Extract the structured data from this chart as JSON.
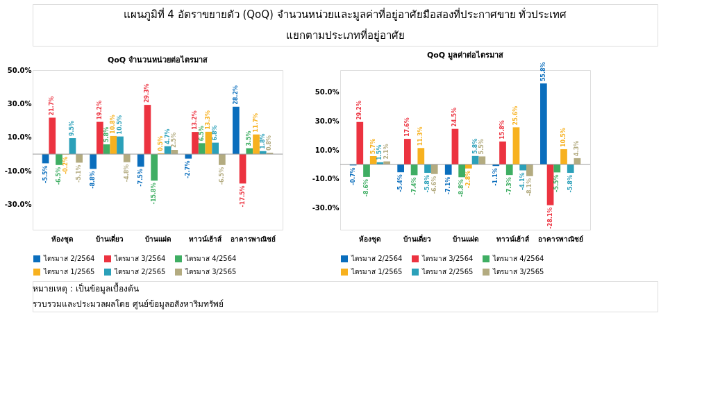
{
  "chart_data": [
    {
      "type": "bar",
      "title": "QoQ จำนวนหน่วยต่อไตรมาส",
      "annotations": [
        "แผนภูมิที่ 4 อัตราขยายตัว (QoQ) จำนวนหน่วยและมูลค่าที่อยู่อาศัยมือสองที่ประกาศขาย ทั่วประเทศ",
        "แยกตามประเภทที่อยู่อาศัย",
        "หมายเหตุ : เป็นข้อมูลเบื้องต้น",
        "รวบรวมและประมวลผลโดย ศูนย์ข้อมูลอสังหาริมทรัพย์"
      ],
      "categories": [
        "ห้องชุด",
        "บ้านเดี่ยว",
        "บ้านแฝด",
        "ทาวน์เฮ้าส์",
        "อาคารพาณิชย์"
      ],
      "ylim": [
        -45,
        50
      ],
      "yticks": [
        {
          "value": 50,
          "label": "50.0%"
        },
        {
          "value": 30,
          "label": "30.0%"
        },
        {
          "value": 10,
          "label": "10.0%"
        },
        {
          "value": -10,
          "label": "-10.0%"
        },
        {
          "value": -30,
          "label": "-30.0%"
        }
      ],
      "grid": false,
      "legend": "bottom",
      "series": [
        {
          "name": "ไตรมาส 2/2564",
          "color": "#0a6ebd",
          "values": [
            -5.5,
            -8.8,
            -7.5,
            -2.7,
            28.2
          ],
          "value_labels": [
            "-5.5%",
            "-8.8%",
            "-7.5%",
            "-2.7%",
            "28.2%"
          ]
        },
        {
          "name": "ไตรมาส 3/2564",
          "color": "#ec3340",
          "values": [
            21.7,
            19.2,
            29.3,
            13.2,
            -17.5
          ],
          "value_labels": [
            "21.7%",
            "19.2%",
            "29.3%",
            "13.2%",
            "-17.5%"
          ]
        },
        {
          "name": "ไตรมาส 4/2564",
          "color": "#3fae63",
          "values": [
            -6.5,
            5.8,
            -15.8,
            6.5,
            3.5
          ],
          "value_labels": [
            "-6.5%",
            "5.8%",
            "-15.8%",
            "6.5%",
            "3.5%"
          ]
        },
        {
          "name": "ไตรมาส 1/2565",
          "color": "#f7b11f",
          "values": [
            -0.2,
            10.8,
            0.5,
            13.3,
            11.7
          ],
          "value_labels": [
            "-0.2%",
            "10.8%",
            "0.5%",
            "13.3%",
            "11.7%"
          ]
        },
        {
          "name": "ไตรมาส 2/2565",
          "color": "#2ba0b9",
          "values": [
            9.5,
            10.5,
            4.7,
            6.8,
            1.8
          ],
          "value_labels": [
            "9.5%",
            "10.5%",
            "4.7%",
            "6.8%",
            "1.8%"
          ]
        },
        {
          "name": "ไตรมาส 3/2565",
          "color": "#b3ab80",
          "values": [
            -5.1,
            -4.8,
            2.5,
            -6.5,
            0.8
          ],
          "value_labels": [
            "-5.1%",
            "-4.8%",
            "2.5%",
            "-6.5%",
            "0.8%"
          ]
        }
      ]
    },
    {
      "type": "bar",
      "title": "QoQ มูลค่าต่อไตรมาส",
      "categories": [
        "ห้องชุด",
        "บ้านเดี่ยว",
        "บ้านแฝด",
        "ทาวน์เฮ้าส์",
        "อาคารพาณิชย์"
      ],
      "ylim": [
        -45,
        65
      ],
      "yticks": [
        {
          "value": 50,
          "label": "50.0%"
        },
        {
          "value": 30,
          "label": "30.0%"
        },
        {
          "value": 10,
          "label": "10.0%"
        },
        {
          "value": -10,
          "label": "-10.0%"
        },
        {
          "value": -30,
          "label": "-30.0%"
        }
      ],
      "grid": false,
      "legend": "bottom",
      "series": [
        {
          "name": "ไตรมาส 2/2564",
          "color": "#0a6ebd",
          "values": [
            -0.7,
            -5.4,
            -7.1,
            -1.1,
            55.8
          ],
          "value_labels": [
            "-0.7%",
            "-5.4%",
            "-7.1%",
            "-1.1%",
            "55.8%"
          ]
        },
        {
          "name": "ไตรมาส 3/2564",
          "color": "#ec3340",
          "values": [
            29.2,
            17.6,
            24.5,
            15.8,
            -28.1
          ],
          "value_labels": [
            "29.2%",
            "17.6%",
            "24.5%",
            "15.8%",
            "-28.1%"
          ]
        },
        {
          "name": "ไตรมาส 4/2564",
          "color": "#3fae63",
          "values": [
            -8.6,
            -7.4,
            -8.8,
            -7.3,
            -5.5
          ],
          "value_labels": [
            "-8.6%",
            "-7.4%",
            "-8.8%",
            "-7.3%",
            "-5.5%"
          ]
        },
        {
          "name": "ไตรมาส 1/2565",
          "color": "#f7b11f",
          "values": [
            5.7,
            11.3,
            -2.8,
            25.6,
            10.5
          ],
          "value_labels": [
            "5.7%",
            "11.3%",
            "-2.8%",
            "25.6%",
            "10.5%"
          ]
        },
        {
          "name": "ไตรมาส 2/2565",
          "color": "#2ba0b9",
          "values": [
            1.5,
            -5.8,
            5.8,
            -4.1,
            -5.8
          ],
          "value_labels": [
            "1.5%",
            "-5.8%",
            "5.8%",
            "-4.1%",
            "-5.8%"
          ]
        },
        {
          "name": "ไตรมาส 3/2565",
          "color": "#b3ab80",
          "values": [
            2.1,
            -6.6,
            5.5,
            -8.1,
            4.3
          ],
          "value_labels": [
            "2.1%",
            "-6.6%",
            "5.5%",
            "-8.1%",
            "4.3%"
          ]
        }
      ]
    }
  ]
}
